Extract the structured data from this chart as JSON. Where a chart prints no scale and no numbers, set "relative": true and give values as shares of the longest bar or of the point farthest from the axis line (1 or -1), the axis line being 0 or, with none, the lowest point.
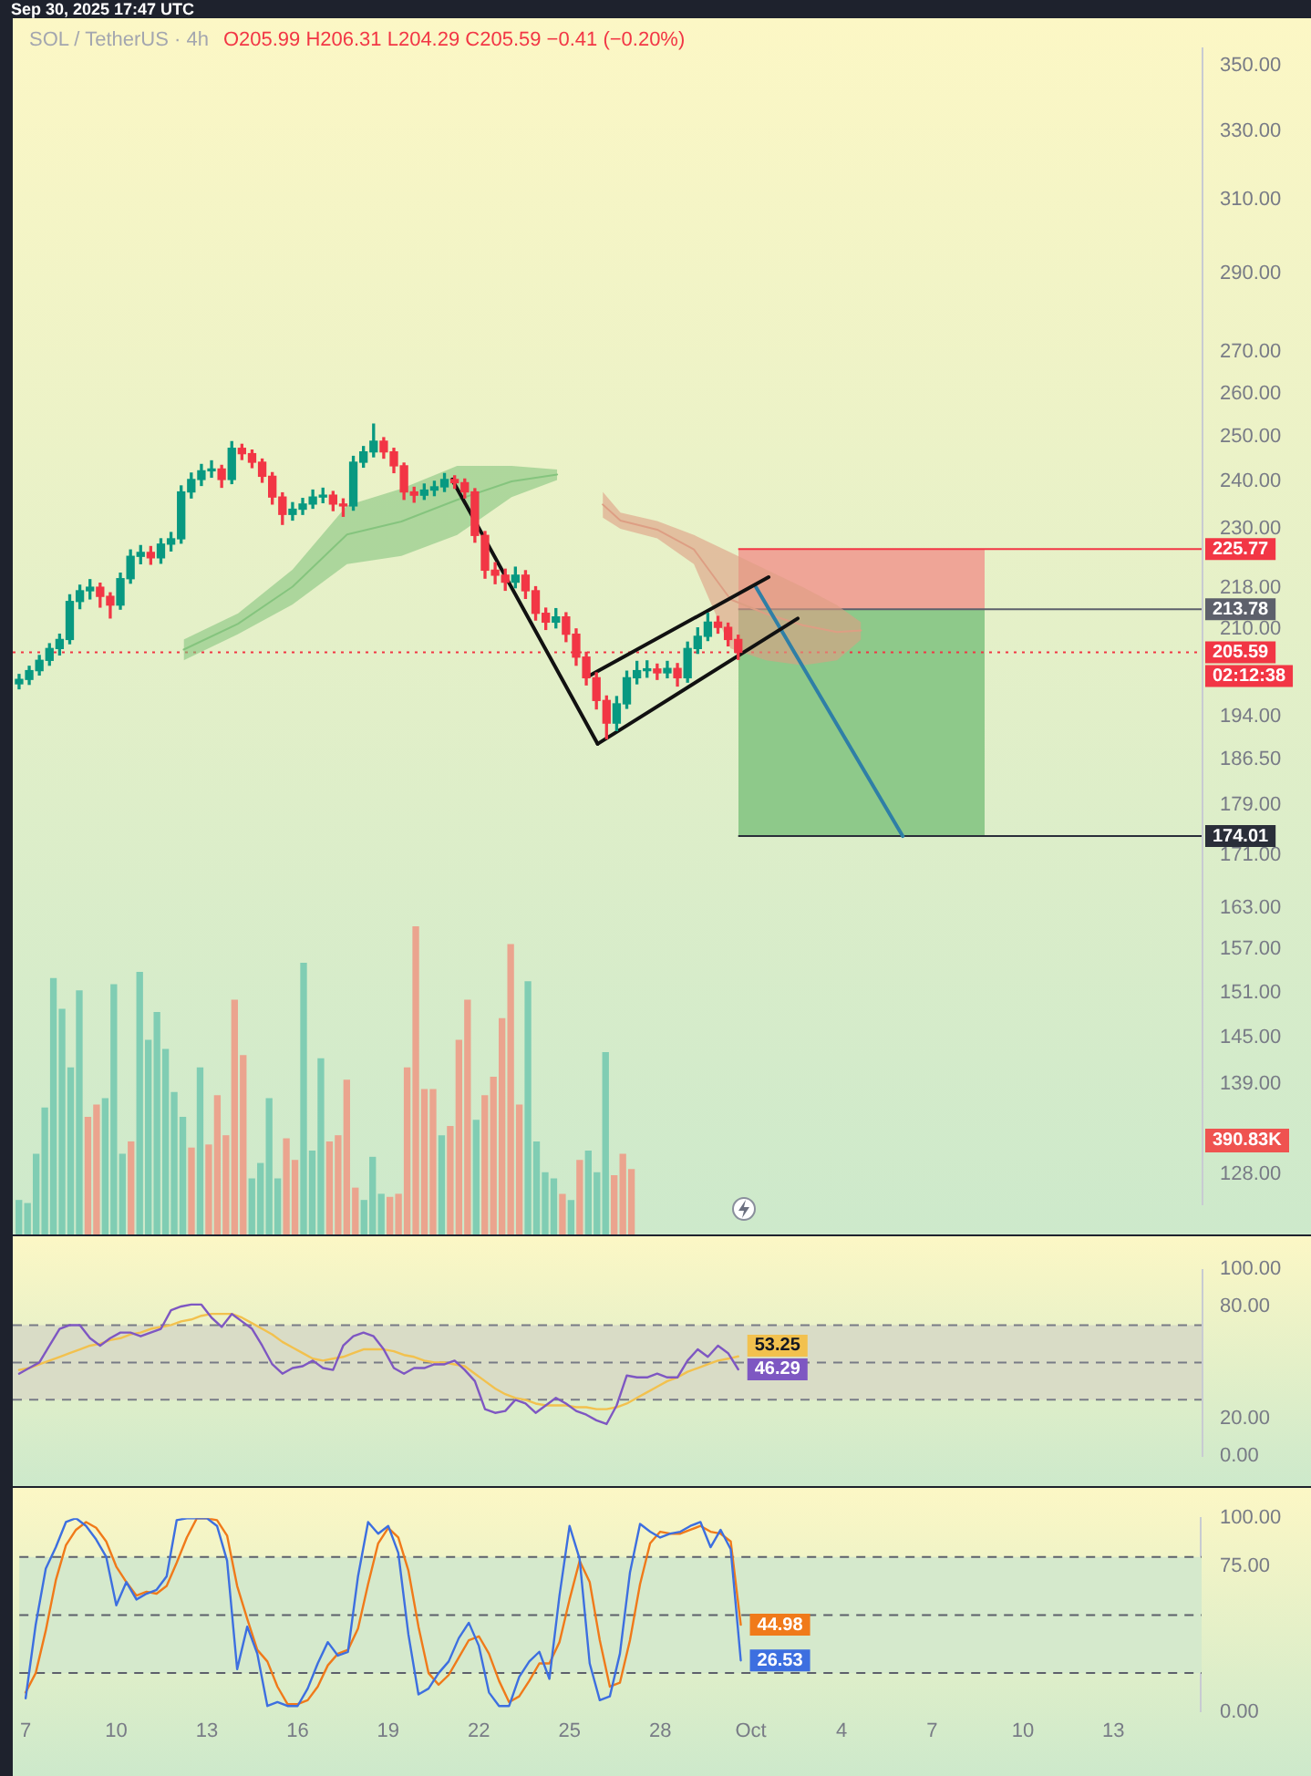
{
  "chart_data": [
    {
      "type": "candlestick",
      "title": "SOL / TetherUS · 4h",
      "subtitle": "O205.99 H206.31 L204.29 C205.59 −0.41 (−0.20%)",
      "annotations": [
        "Sep 30, 2025 17:47 UTC",
        "02:12:38"
      ],
      "x": [
        "2025-09-07T00:00",
        "2025-09-07T08:00",
        "2025-09-07T16:00",
        "2025-09-08T00:00",
        "2025-09-08T08:00",
        "2025-09-08T16:00",
        "2025-09-09T00:00",
        "2025-09-09T08:00",
        "2025-09-09T16:00",
        "2025-09-10T00:00",
        "2025-09-10T08:00",
        "2025-09-10T16:00",
        "2025-09-11T00:00",
        "2025-09-11T08:00",
        "2025-09-11T16:00",
        "2025-09-12T00:00",
        "2025-09-12T08:00",
        "2025-09-12T16:00",
        "2025-09-13T00:00",
        "2025-09-13T08:00",
        "2025-09-13T16:00",
        "2025-09-14T00:00",
        "2025-09-14T08:00",
        "2025-09-14T16:00",
        "2025-09-15T00:00",
        "2025-09-15T08:00",
        "2025-09-15T16:00",
        "2025-09-16T00:00",
        "2025-09-16T08:00",
        "2025-09-16T16:00",
        "2025-09-17T00:00",
        "2025-09-17T08:00",
        "2025-09-17T16:00",
        "2025-09-18T00:00",
        "2025-09-18T08:00",
        "2025-09-18T16:00",
        "2025-09-19T00:00",
        "2025-09-19T08:00",
        "2025-09-19T16:00",
        "2025-09-20T00:00",
        "2025-09-20T08:00",
        "2025-09-20T16:00",
        "2025-09-21T00:00",
        "2025-09-21T08:00",
        "2025-09-21T16:00",
        "2025-09-22T00:00",
        "2025-09-22T08:00",
        "2025-09-22T16:00",
        "2025-09-23T00:00",
        "2025-09-23T08:00",
        "2025-09-23T16:00",
        "2025-09-24T00:00",
        "2025-09-24T08:00",
        "2025-09-24T16:00",
        "2025-09-25T00:00",
        "2025-09-25T08:00",
        "2025-09-25T16:00",
        "2025-09-26T00:00",
        "2025-09-26T08:00",
        "2025-09-26T16:00",
        "2025-09-27T00:00",
        "2025-09-27T08:00",
        "2025-09-27T16:00",
        "2025-09-28T00:00",
        "2025-09-28T08:00",
        "2025-09-28T16:00",
        "2025-09-29T00:00",
        "2025-09-29T08:00",
        "2025-09-29T16:00",
        "2025-09-30T00:00",
        "2025-09-30T08:00",
        "2025-09-30T16:00"
      ],
      "ohlc": [
        [
          199.8,
          201.5,
          198.9,
          200.6
        ],
        [
          200.6,
          203.0,
          199.7,
          202.2
        ],
        [
          202.2,
          205.0,
          201.4,
          204.1
        ],
        [
          204.1,
          207.2,
          203.2,
          206.3
        ],
        [
          206.3,
          209.0,
          205.1,
          208.0
        ],
        [
          208.0,
          216.6,
          207.2,
          215.3
        ],
        [
          215.3,
          218.5,
          213.9,
          217.4
        ],
        [
          217.4,
          219.6,
          215.8,
          218.1
        ],
        [
          218.1,
          218.9,
          214.2,
          216.3
        ],
        [
          216.3,
          217.0,
          212.1,
          214.6
        ],
        [
          214.6,
          220.9,
          213.8,
          219.8
        ],
        [
          219.8,
          225.6,
          218.9,
          224.3
        ],
        [
          224.3,
          226.5,
          222.8,
          225.1
        ],
        [
          225.1,
          226.3,
          222.7,
          224.0
        ],
        [
          224.0,
          227.9,
          222.9,
          226.8
        ],
        [
          226.8,
          229.2,
          225.4,
          227.9
        ],
        [
          227.9,
          239.1,
          227.0,
          237.8
        ],
        [
          237.8,
          241.9,
          236.5,
          240.5
        ],
        [
          240.5,
          243.8,
          239.2,
          242.4
        ],
        [
          242.4,
          244.6,
          241.0,
          242.8
        ],
        [
          242.8,
          243.6,
          238.8,
          240.5
        ],
        [
          240.5,
          248.9,
          239.6,
          247.4
        ],
        [
          247.4,
          248.3,
          244.9,
          246.2
        ],
        [
          246.2,
          247.0,
          243.1,
          244.3
        ],
        [
          244.3,
          245.0,
          239.9,
          241.2
        ],
        [
          241.2,
          242.0,
          235.2,
          236.7
        ],
        [
          236.7,
          237.6,
          230.9,
          233.0
        ],
        [
          233.0,
          235.5,
          231.8,
          234.1
        ],
        [
          234.1,
          236.4,
          233.0,
          235.2
        ],
        [
          235.2,
          238.2,
          234.3,
          236.7
        ],
        [
          236.7,
          238.6,
          235.5,
          237.1
        ],
        [
          237.1,
          237.9,
          233.8,
          235.2
        ],
        [
          235.2,
          236.3,
          232.6,
          234.8
        ],
        [
          234.8,
          245.6,
          233.9,
          244.3
        ],
        [
          244.3,
          247.8,
          243.2,
          246.6
        ],
        [
          246.6,
          252.9,
          245.5,
          249.0
        ],
        [
          249.0,
          249.8,
          245.2,
          246.6
        ],
        [
          246.6,
          247.4,
          242.0,
          243.5
        ],
        [
          243.5,
          244.1,
          236.2,
          237.8
        ],
        [
          237.8,
          238.8,
          235.6,
          237.1
        ],
        [
          237.1,
          239.5,
          236.2,
          238.2
        ],
        [
          238.2,
          240.1,
          237.0,
          238.9
        ],
        [
          238.9,
          241.8,
          237.9,
          240.5
        ],
        [
          240.5,
          241.3,
          238.6,
          239.8
        ],
        [
          239.8,
          240.6,
          236.5,
          237.8
        ],
        [
          237.8,
          238.5,
          227.2,
          228.6
        ],
        [
          228.6,
          229.4,
          219.9,
          221.5
        ],
        [
          221.5,
          223.0,
          218.8,
          220.5
        ],
        [
          220.5,
          221.7,
          217.5,
          219.1
        ],
        [
          219.1,
          222.1,
          218.0,
          220.5
        ],
        [
          220.5,
          221.4,
          215.9,
          217.4
        ],
        [
          217.4,
          218.2,
          211.7,
          213.0
        ],
        [
          213.0,
          214.0,
          209.9,
          211.3
        ],
        [
          211.3,
          213.9,
          210.2,
          212.3
        ],
        [
          212.3,
          213.1,
          207.6,
          209.0
        ],
        [
          209.0,
          210.0,
          203.2,
          204.7
        ],
        [
          204.7,
          205.6,
          199.6,
          200.9
        ],
        [
          200.9,
          201.8,
          195.3,
          196.8
        ],
        [
          196.8,
          197.6,
          190.1,
          192.8
        ],
        [
          192.8,
          197.5,
          191.5,
          196.2
        ],
        [
          196.2,
          202.1,
          195.4,
          200.9
        ],
        [
          200.9,
          203.9,
          199.8,
          202.2
        ],
        [
          202.2,
          204.0,
          201.0,
          202.5
        ],
        [
          202.5,
          203.4,
          200.6,
          201.8
        ],
        [
          201.8,
          203.9,
          200.9,
          202.6
        ],
        [
          202.6,
          203.5,
          199.4,
          200.9
        ],
        [
          200.9,
          207.5,
          200.1,
          206.3
        ],
        [
          206.3,
          210.2,
          205.4,
          208.6
        ],
        [
          208.6,
          213.0,
          207.8,
          211.3
        ],
        [
          211.3,
          212.4,
          209.2,
          210.3
        ],
        [
          210.3,
          211.1,
          206.8,
          208.0
        ],
        [
          208.0,
          208.8,
          204.29,
          205.59
        ]
      ],
      "colors": [
        "#089981",
        "#089981",
        "#089981",
        "#089981",
        "#089981",
        "#089981",
        "#089981",
        "#089981",
        "#f23645",
        "#f23645",
        "#089981",
        "#089981",
        "#089981",
        "#f23645",
        "#089981",
        "#089981",
        "#089981",
        "#089981",
        "#089981",
        "#089981",
        "#f23645",
        "#089981",
        "#f23645",
        "#f23645",
        "#f23645",
        "#f23645",
        "#f23645",
        "#089981",
        "#089981",
        "#089981",
        "#089981",
        "#f23645",
        "#f23645",
        "#089981",
        "#089981",
        "#089981",
        "#f23645",
        "#f23645",
        "#f23645",
        "#f23645",
        "#089981",
        "#089981",
        "#089981",
        "#f23645",
        "#f23645",
        "#f23645",
        "#f23645",
        "#f23645",
        "#f23645",
        "#089981",
        "#f23645",
        "#f23645",
        "#f23645",
        "#089981",
        "#f23645",
        "#f23645",
        "#f23645",
        "#f23645",
        "#f23645",
        "#089981",
        "#089981",
        "#089981",
        "#089981",
        "#f23645",
        "#089981",
        "#f23645",
        "#089981",
        "#089981",
        "#089981",
        "#f23645",
        "#f23645",
        "#f23645"
      ],
      "series": [
        {
          "type": "line",
          "color": "#86c47e",
          "x": [
            "2025-09-12T10:00",
            "2025-09-14T05:00",
            "2025-09-16T00:00",
            "2025-09-17T19:00",
            "2025-09-19T14:00",
            "2025-09-21T10:00",
            "2025-09-23T05:00",
            "2025-09-24T17:00"
          ],
          "values": [
            206.1,
            211.0,
            218.2,
            228.8,
            231.5,
            236.1,
            240.1,
            241.6
          ],
          "lower": [
            204.1,
            209.0,
            214.7,
            222.7,
            224.4,
            228.7,
            236.7,
            240.4
          ],
          "upper": [
            208.0,
            213.0,
            221.6,
            234.9,
            238.5,
            243.5,
            243.5,
            242.7
          ]
        },
        {
          "type": "line",
          "color": "#dd9f84",
          "x": [
            "2025-09-26T05:00",
            "2025-09-26T19:00",
            "2025-09-28T00:00",
            "2025-09-29T05:00",
            "2025-09-30T10:00",
            "2025-10-01T14:00",
            "2025-10-02T19:00",
            "2025-10-03T22:00",
            "2025-10-04T17:00"
          ],
          "values": [
            235.1,
            231.7,
            229.8,
            225.7,
            215.7,
            212.9,
            210.7,
            209.4,
            209.7
          ],
          "lower": [
            232.3,
            230.0,
            228.0,
            222.7,
            206.3,
            204.1,
            203.2,
            204.1,
            208.0
          ],
          "upper": [
            237.8,
            233.4,
            231.6,
            228.7,
            225.1,
            221.6,
            218.1,
            214.6,
            211.3
          ]
        },
        {
          "type": "line",
          "color": "#111111",
          "x": [
            "2025-09-21T06:00",
            "2025-09-26T01:00"
          ],
          "values": [
            240.5,
            189.2
          ]
        },
        {
          "type": "line",
          "color": "#111111",
          "x": [
            "2025-09-25T18:00",
            "2025-10-01T16:00"
          ],
          "values": [
            201.2,
            220.1
          ]
        },
        {
          "type": "line",
          "color": "#111111",
          "x": [
            "2025-09-26T01:00",
            "2025-10-02T15:00"
          ],
          "values": [
            189.2,
            212.0
          ]
        },
        {
          "type": "line",
          "color": "#2f7fa6",
          "x": [
            "2025-10-01T06:00",
            "2025-10-06T02:00"
          ],
          "values": [
            218.1,
            174.0
          ]
        }
      ],
      "ref_lines": [
        {
          "axis": "y",
          "value": 205.59,
          "label": "205.59",
          "color": "#f23645",
          "line_style": "dotted"
        },
        {
          "axis": "y",
          "value": 225.77,
          "label": "225.77",
          "color": "#f23645"
        },
        {
          "axis": "y",
          "value": 213.78,
          "label": "213.78",
          "color": "#5d606b"
        },
        {
          "axis": "y",
          "value": 174.01,
          "label": "174.01",
          "color": "#2a2e39"
        }
      ],
      "log": true,
      "ylim": [
        124.6,
        355.6
      ],
      "yticks": [
        {
          "value": 350,
          "label": "350.00"
        },
        {
          "value": 330,
          "label": "330.00"
        },
        {
          "value": 310,
          "label": "310.00"
        },
        {
          "value": 290,
          "label": "290.00"
        },
        {
          "value": 270,
          "label": "270.00"
        },
        {
          "value": 260,
          "label": "260.00"
        },
        {
          "value": 250,
          "label": "250.00"
        },
        {
          "value": 240,
          "label": "240.00"
        },
        {
          "value": 230,
          "label": "230.00"
        },
        {
          "value": 218,
          "label": "218.00"
        },
        {
          "value": 210,
          "label": "210.00"
        },
        {
          "value": 194,
          "label": "194.00"
        },
        {
          "value": 186.5,
          "label": "186.50"
        },
        {
          "value": 179,
          "label": "179.00"
        },
        {
          "value": 171,
          "label": "171.00"
        },
        {
          "value": 163,
          "label": "163.00"
        },
        {
          "value": 157,
          "label": "157.00"
        },
        {
          "value": 151,
          "label": "151.00"
        },
        {
          "value": 145,
          "label": "145.00"
        },
        {
          "value": 139,
          "label": "139.00"
        },
        {
          "value": 128,
          "label": "128.00"
        }
      ],
      "xlim": [
        "2025-09-06T19:00",
        "2025-10-15T22:00"
      ],
      "tick_labels": "y"
    },
    {
      "type": "bar",
      "relative": true,
      "annotations": [
        "390.83K"
      ],
      "categories": [
        null,
        null,
        null,
        null,
        null,
        null,
        null,
        null,
        null,
        null,
        null,
        null,
        null,
        null,
        null,
        null,
        null,
        null,
        null,
        null,
        null,
        null,
        null,
        null,
        null,
        null,
        null,
        null,
        null,
        null,
        null,
        null,
        null,
        null,
        null,
        null,
        null,
        null,
        null,
        null,
        null,
        null,
        null,
        null,
        null,
        null,
        null,
        null,
        null,
        null,
        null,
        null,
        null,
        null,
        null,
        null,
        null,
        null,
        null,
        null,
        null,
        null,
        null,
        null,
        null,
        null,
        null,
        null,
        null,
        null,
        null,
        null
      ],
      "values": [
        0.11,
        0.1,
        0.26,
        0.41,
        0.83,
        0.73,
        0.54,
        0.79,
        0.38,
        0.42,
        0.44,
        0.81,
        0.26,
        0.3,
        0.85,
        0.63,
        0.72,
        0.6,
        0.46,
        0.38,
        0.28,
        0.54,
        0.29,
        0.45,
        0.32,
        0.76,
        0.58,
        0.18,
        0.23,
        0.44,
        0.18,
        0.31,
        0.24,
        0.88,
        0.27,
        0.57,
        0.3,
        0.32,
        0.5,
        0.15,
        0.11,
        0.25,
        0.13,
        0.12,
        0.13,
        0.54,
        1,
        0.47,
        0.47,
        0.32,
        0.35,
        0.63,
        0.76,
        0.37,
        0.45,
        0.51,
        0.7,
        0.94,
        0.42,
        0.82,
        0.3,
        0.2,
        0.18,
        0.13,
        0.11,
        0.24,
        0.27,
        0.2,
        0.59,
        0.19,
        0.26,
        0.21
      ],
      "colors": [
        "#80cdb3",
        "#80cdb3",
        "#80cdb3",
        "#80cdb3",
        "#80cdb3",
        "#80cdb3",
        "#80cdb3",
        "#80cdb3",
        "#eba48e",
        "#eba48e",
        "#80cdb3",
        "#80cdb3",
        "#80cdb3",
        "#eba48e",
        "#80cdb3",
        "#80cdb3",
        "#80cdb3",
        "#80cdb3",
        "#80cdb3",
        "#80cdb3",
        "#eba48e",
        "#80cdb3",
        "#eba48e",
        "#eba48e",
        "#eba48e",
        "#eba48e",
        "#eba48e",
        "#80cdb3",
        "#80cdb3",
        "#80cdb3",
        "#80cdb3",
        "#eba48e",
        "#eba48e",
        "#80cdb3",
        "#80cdb3",
        "#80cdb3",
        "#eba48e",
        "#eba48e",
        "#eba48e",
        "#eba48e",
        "#80cdb3",
        "#80cdb3",
        "#80cdb3",
        "#eba48e",
        "#eba48e",
        "#eba48e",
        "#eba48e",
        "#eba48e",
        "#eba48e",
        "#80cdb3",
        "#eba48e",
        "#eba48e",
        "#eba48e",
        "#80cdb3",
        "#eba48e",
        "#eba48e",
        "#eba48e",
        "#eba48e",
        "#eba48e",
        "#80cdb3",
        "#80cdb3",
        "#80cdb3",
        "#80cdb3",
        "#eba48e",
        "#80cdb3",
        "#eba48e",
        "#80cdb3",
        "#80cdb3",
        "#80cdb3",
        "#eba48e",
        "#eba48e",
        "#eba48e"
      ],
      "tick_labels": false
    },
    {
      "type": "line",
      "x": [
        "2025-09-07T00:00",
        "2025-09-07T08:00",
        "2025-09-07T16:00",
        "2025-09-08T00:00",
        "2025-09-08T08:00",
        "2025-09-08T16:00",
        "2025-09-09T00:00",
        "2025-09-09T08:00",
        "2025-09-09T16:00",
        "2025-09-10T00:00",
        "2025-09-10T08:00",
        "2025-09-10T16:00",
        "2025-09-11T00:00",
        "2025-09-11T08:00",
        "2025-09-11T16:00",
        "2025-09-12T00:00",
        "2025-09-12T08:00",
        "2025-09-12T16:00",
        "2025-09-13T00:00",
        "2025-09-13T08:00",
        "2025-09-13T16:00",
        "2025-09-14T00:00",
        "2025-09-14T08:00",
        "2025-09-14T16:00",
        "2025-09-15T00:00",
        "2025-09-15T08:00",
        "2025-09-15T16:00",
        "2025-09-16T00:00",
        "2025-09-16T08:00",
        "2025-09-16T16:00",
        "2025-09-17T00:00",
        "2025-09-17T08:00",
        "2025-09-17T16:00",
        "2025-09-18T00:00",
        "2025-09-18T08:00",
        "2025-09-18T16:00",
        "2025-09-19T00:00",
        "2025-09-19T08:00",
        "2025-09-19T16:00",
        "2025-09-20T00:00",
        "2025-09-20T08:00",
        "2025-09-20T16:00",
        "2025-09-21T00:00",
        "2025-09-21T08:00",
        "2025-09-21T16:00",
        "2025-09-22T00:00",
        "2025-09-22T08:00",
        "2025-09-22T16:00",
        "2025-09-23T00:00",
        "2025-09-23T08:00",
        "2025-09-23T16:00",
        "2025-09-24T00:00",
        "2025-09-24T08:00",
        "2025-09-24T16:00",
        "2025-09-25T00:00",
        "2025-09-25T08:00",
        "2025-09-25T16:00",
        "2025-09-26T00:00",
        "2025-09-26T08:00",
        "2025-09-26T16:00",
        "2025-09-27T00:00",
        "2025-09-27T08:00",
        "2025-09-27T16:00",
        "2025-09-28T00:00",
        "2025-09-28T08:00",
        "2025-09-28T16:00",
        "2025-09-29T00:00",
        "2025-09-29T08:00",
        "2025-09-29T16:00",
        "2025-09-30T00:00",
        "2025-09-30T08:00",
        "2025-09-30T16:00"
      ],
      "series": [
        {
          "color": "#7e57c2",
          "values": [
            44,
            47,
            50,
            59,
            68,
            70,
            70,
            63,
            59,
            63,
            66,
            66,
            64,
            66,
            68,
            78,
            80,
            81,
            81,
            74,
            69,
            76,
            72,
            68,
            59,
            49,
            44,
            47,
            48,
            51,
            47,
            46,
            59,
            64,
            66,
            64,
            57,
            47,
            44,
            47,
            47,
            49,
            49,
            51,
            46,
            40,
            25,
            23,
            24,
            30,
            28,
            23,
            27,
            31,
            28,
            24,
            22,
            19,
            17,
            27,
            43,
            42,
            42,
            44,
            42,
            42,
            51,
            57,
            53,
            59,
            55,
            46.29
          ],
          "value_labels": [
            null,
            null,
            null,
            null,
            null,
            null,
            null,
            null,
            null,
            null,
            null,
            null,
            null,
            null,
            null,
            null,
            null,
            null,
            null,
            null,
            null,
            null,
            null,
            null,
            null,
            null,
            null,
            null,
            null,
            null,
            null,
            null,
            null,
            null,
            null,
            null,
            null,
            null,
            null,
            null,
            null,
            null,
            null,
            null,
            null,
            null,
            null,
            null,
            null,
            null,
            null,
            null,
            null,
            null,
            null,
            null,
            null,
            null,
            null,
            null,
            null,
            null,
            null,
            null,
            null,
            null,
            null,
            null,
            null,
            null,
            null,
            "46.29"
          ]
        },
        {
          "color": "#f2c14e",
          "values": [
            46,
            47,
            49,
            51,
            53,
            55,
            57,
            59,
            60,
            62,
            63,
            65,
            66,
            68,
            69,
            70,
            72,
            73,
            75,
            76,
            76,
            76,
            74,
            71,
            68,
            65,
            61,
            58,
            55,
            52,
            51,
            52,
            53,
            55,
            57,
            57,
            57,
            56,
            54,
            53,
            51,
            50,
            50,
            49,
            48,
            44,
            40,
            36,
            33,
            31,
            30,
            28,
            27,
            27,
            27,
            26,
            26,
            25,
            25,
            26,
            28,
            31,
            34,
            37,
            40,
            42,
            45,
            47,
            49,
            51,
            52,
            53.25
          ],
          "value_labels": [
            null,
            null,
            null,
            null,
            null,
            null,
            null,
            null,
            null,
            null,
            null,
            null,
            null,
            null,
            null,
            null,
            null,
            null,
            null,
            null,
            null,
            null,
            null,
            null,
            null,
            null,
            null,
            null,
            null,
            null,
            null,
            null,
            null,
            null,
            null,
            null,
            null,
            null,
            null,
            null,
            null,
            null,
            null,
            null,
            null,
            null,
            null,
            null,
            null,
            null,
            null,
            null,
            null,
            null,
            null,
            null,
            null,
            null,
            null,
            null,
            null,
            null,
            null,
            null,
            null,
            null,
            null,
            null,
            null,
            null,
            null,
            "53.25"
          ]
        }
      ],
      "bands": [
        {
          "axis": "y",
          "from": 30,
          "to": 70,
          "color": "#d9dcc6"
        }
      ],
      "ref_lines": [
        {
          "axis": "y",
          "value": 70,
          "line_style": "dashed",
          "color": "#787b86"
        },
        {
          "axis": "y",
          "value": 50,
          "line_style": "dashed",
          "color": "#787b86"
        },
        {
          "axis": "y",
          "value": 30,
          "line_style": "dashed",
          "color": "#787b86"
        }
      ],
      "ylim": [
        0,
        100
      ],
      "yticks": [
        {
          "value": 0,
          "label": "0.00"
        },
        {
          "value": 20,
          "label": "20.00"
        },
        {
          "value": 80,
          "label": "80.00"
        },
        {
          "value": 100,
          "label": "100.00"
        }
      ],
      "xlim": [
        "2025-09-06T19:00",
        "2025-10-15T22:00"
      ],
      "tick_labels": "y"
    },
    {
      "type": "line",
      "x": [
        "2025-09-07T00:00",
        "2025-09-07T08:00",
        "2025-09-07T16:00",
        "2025-09-08T00:00",
        "2025-09-08T08:00",
        "2025-09-08T16:00",
        "2025-09-09T00:00",
        "2025-09-09T08:00",
        "2025-09-09T16:00",
        "2025-09-10T00:00",
        "2025-09-10T08:00",
        "2025-09-10T16:00",
        "2025-09-11T00:00",
        "2025-09-11T08:00",
        "2025-09-11T16:00",
        "2025-09-12T00:00",
        "2025-09-12T08:00",
        "2025-09-12T16:00",
        "2025-09-13T00:00",
        "2025-09-13T08:00",
        "2025-09-13T16:00",
        "2025-09-14T00:00",
        "2025-09-14T08:00",
        "2025-09-14T16:00",
        "2025-09-15T00:00",
        "2025-09-15T08:00",
        "2025-09-15T16:00",
        "2025-09-16T00:00",
        "2025-09-16T08:00",
        "2025-09-16T16:00",
        "2025-09-17T00:00",
        "2025-09-17T08:00",
        "2025-09-17T16:00",
        "2025-09-18T00:00",
        "2025-09-18T08:00",
        "2025-09-18T16:00",
        "2025-09-19T00:00",
        "2025-09-19T08:00",
        "2025-09-19T16:00",
        "2025-09-20T00:00",
        "2025-09-20T08:00",
        "2025-09-20T16:00",
        "2025-09-21T00:00",
        "2025-09-21T08:00",
        "2025-09-21T16:00",
        "2025-09-22T00:00",
        "2025-09-22T08:00",
        "2025-09-22T16:00",
        "2025-09-23T00:00",
        "2025-09-23T08:00",
        "2025-09-23T16:00",
        "2025-09-24T00:00",
        "2025-09-24T08:00",
        "2025-09-24T16:00",
        "2025-09-25T00:00",
        "2025-09-25T08:00",
        "2025-09-25T16:00",
        "2025-09-26T00:00",
        "2025-09-26T08:00",
        "2025-09-26T16:00",
        "2025-09-27T00:00",
        "2025-09-27T08:00",
        "2025-09-27T16:00",
        "2025-09-28T00:00",
        "2025-09-28T08:00",
        "2025-09-28T16:00",
        "2025-09-29T00:00",
        "2025-09-29T08:00",
        "2025-09-29T16:00",
        "2025-09-30T00:00",
        "2025-09-30T08:00",
        "2025-09-30T16:00"
      ],
      "series": [
        {
          "color": "#3d6fe0",
          "values": [
            7,
            45,
            74,
            85,
            98,
            100,
            96,
            89,
            80,
            55,
            67,
            58,
            61,
            63,
            70,
            99,
            100,
            100,
            100,
            96,
            78,
            22,
            44,
            30,
            3,
            5,
            3,
            3,
            12,
            25,
            36,
            29,
            31,
            70,
            98,
            92,
            96,
            82,
            40,
            9,
            12,
            20,
            26,
            38,
            46,
            34,
            10,
            3,
            3,
            18,
            26,
            31,
            17,
            60,
            96,
            79,
            25,
            6,
            8,
            30,
            72,
            97,
            93,
            90,
            92,
            93,
            96,
            98,
            85,
            94,
            84,
            26.53
          ],
          "value_labels": [
            null,
            null,
            null,
            null,
            null,
            null,
            null,
            null,
            null,
            null,
            null,
            null,
            null,
            null,
            null,
            null,
            null,
            null,
            null,
            null,
            null,
            null,
            null,
            null,
            null,
            null,
            null,
            null,
            null,
            null,
            null,
            null,
            null,
            null,
            null,
            null,
            null,
            null,
            null,
            null,
            null,
            null,
            null,
            null,
            null,
            null,
            null,
            null,
            null,
            null,
            null,
            null,
            null,
            null,
            null,
            null,
            null,
            null,
            null,
            null,
            null,
            null,
            null,
            null,
            null,
            null,
            null,
            null,
            null,
            null,
            null,
            "26.53"
          ]
        },
        {
          "color": "#f07a1a",
          "values": [
            10,
            20,
            42,
            68,
            86,
            94,
            98,
            95,
            88,
            75,
            67,
            60,
            62,
            61,
            65,
            77,
            90,
            100,
            100,
            99,
            91,
            65,
            48,
            32,
            26,
            13,
            4,
            4,
            6,
            13,
            24,
            30,
            32,
            43,
            66,
            87,
            95,
            90,
            73,
            44,
            20,
            14,
            19,
            28,
            37,
            39,
            30,
            16,
            5,
            8,
            16,
            25,
            25,
            36,
            58,
            78,
            67,
            37,
            13,
            15,
            37,
            66,
            87,
            93,
            92,
            92,
            94,
            96,
            93,
            92,
            88,
            44.98
          ],
          "value_labels": [
            null,
            null,
            null,
            null,
            null,
            null,
            null,
            null,
            null,
            null,
            null,
            null,
            null,
            null,
            null,
            null,
            null,
            null,
            null,
            null,
            null,
            null,
            null,
            null,
            null,
            null,
            null,
            null,
            null,
            null,
            null,
            null,
            null,
            null,
            null,
            null,
            null,
            null,
            null,
            null,
            null,
            null,
            null,
            null,
            null,
            null,
            null,
            null,
            null,
            null,
            null,
            null,
            null,
            null,
            null,
            null,
            null,
            null,
            null,
            null,
            null,
            null,
            null,
            null,
            null,
            null,
            null,
            null,
            null,
            null,
            null,
            "44.98"
          ]
        }
      ],
      "bands": [
        {
          "axis": "y",
          "from": 20,
          "to": 80,
          "color": "#d5e9cc"
        }
      ],
      "ref_lines": [
        {
          "axis": "y",
          "value": 80,
          "line_style": "dashed",
          "color": "#5d606b"
        },
        {
          "axis": "y",
          "value": 50,
          "line_style": "dashed",
          "color": "#5d606b"
        },
        {
          "axis": "y",
          "value": 20,
          "line_style": "dashed",
          "color": "#5d606b"
        }
      ],
      "ylim": [
        0,
        100
      ],
      "yticks": [
        {
          "value": 0,
          "label": "0.00"
        },
        {
          "value": 75,
          "label": "75.00"
        },
        {
          "value": 100,
          "label": "100.00"
        }
      ],
      "xlim": [
        "2025-09-06T19:00",
        "2025-10-15T22:00"
      ],
      "xticks": [
        {
          "value": "2025-09-07",
          "label": "7"
        },
        {
          "value": "2025-09-10",
          "label": "10"
        },
        {
          "value": "2025-09-13",
          "label": "13"
        },
        {
          "value": "2025-09-16",
          "label": "16"
        },
        {
          "value": "2025-09-19",
          "label": "19"
        },
        {
          "value": "2025-09-22",
          "label": "22"
        },
        {
          "value": "2025-09-25",
          "label": "25"
        },
        {
          "value": "2025-09-28",
          "label": "28"
        },
        {
          "value": "2025-10-01",
          "label": "Oct"
        },
        {
          "value": "2025-10-04",
          "label": "4"
        },
        {
          "value": "2025-10-07",
          "label": "7"
        },
        {
          "value": "2025-10-10",
          "label": "10"
        },
        {
          "value": "2025-10-13",
          "label": "13"
        }
      ]
    }
  ]
}
